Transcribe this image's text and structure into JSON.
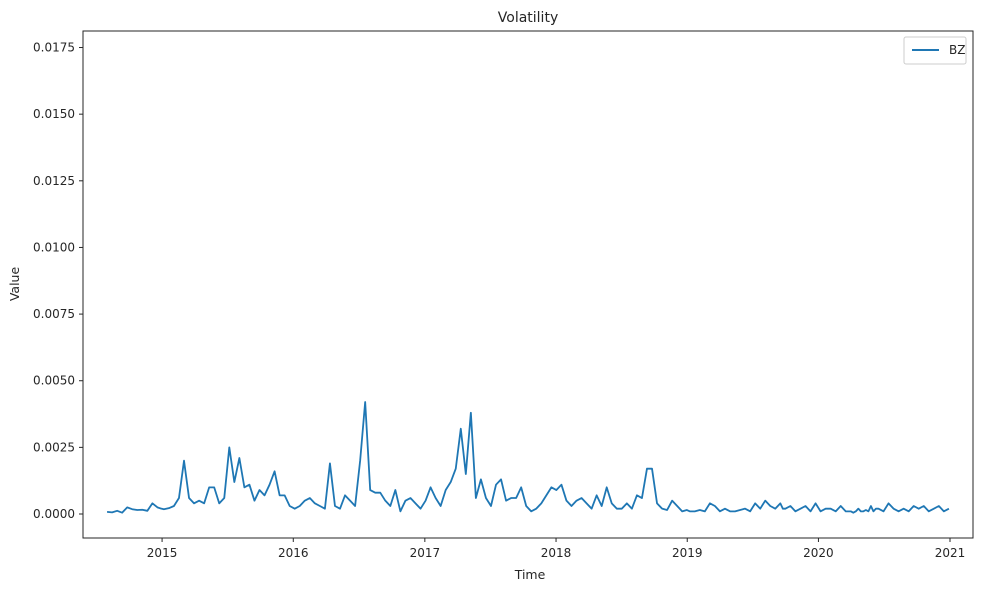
{
  "chart_data": {
    "type": "line",
    "title": "Volatility",
    "xlabel": "Time",
    "ylabel": "Value",
    "xlim": [
      "2014-05-26",
      "2021-03-06"
    ],
    "ylim": [
      -0.0009,
      0.01812
    ],
    "x_ticks": [
      "2015-01-01",
      "2016-01-01",
      "2017-01-01",
      "2018-01-01",
      "2019-01-01",
      "2020-01-01",
      "2021-01-01"
    ],
    "x_tick_labels": [
      "2015",
      "2016",
      "2017",
      "2018",
      "2019",
      "2020",
      "2021"
    ],
    "y_ticks": [
      0.0,
      0.0025,
      0.005,
      0.0075,
      0.01,
      0.0125,
      0.015,
      0.0175
    ],
    "y_tick_labels": [
      "0.0000",
      "0.0025",
      "0.0050",
      "0.0075",
      "0.0100",
      "0.0125",
      "0.0150",
      "0.0175"
    ],
    "legend": {
      "position": "top-right",
      "entries": [
        "BZ"
      ]
    },
    "grid": false,
    "series": [
      {
        "name": "BZ",
        "color": "#1f77b4",
        "x": [
          "2014-08-01",
          "2014-08-15",
          "2014-08-29",
          "2014-09-12",
          "2014-09-26",
          "2014-10-10",
          "2014-10-24",
          "2014-11-07",
          "2014-11-21",
          "2014-12-05",
          "2014-12-19",
          "2014-12-30",
          "2015-01-06",
          "2015-01-20",
          "2015-02-03",
          "2015-02-17",
          "2015-03-03",
          "2015-03-17",
          "2015-03-31",
          "2015-04-14",
          "2015-04-28",
          "2015-05-12",
          "2015-05-26",
          "2015-06-09",
          "2015-06-23",
          "2015-07-07",
          "2015-07-21",
          "2015-08-04",
          "2015-08-18",
          "2015-09-01",
          "2015-09-15",
          "2015-09-29",
          "2015-10-13",
          "2015-10-27",
          "2015-11-10",
          "2015-11-24",
          "2015-12-08",
          "2015-12-22",
          "2016-01-05",
          "2016-01-19",
          "2016-02-02",
          "2016-02-16",
          "2016-03-01",
          "2016-03-15",
          "2016-03-29",
          "2016-04-12",
          "2016-04-26",
          "2016-05-10",
          "2016-05-24",
          "2016-06-07",
          "2016-06-21",
          "2016-07-05",
          "2016-07-19",
          "2016-08-02",
          "2016-08-16",
          "2016-08-30",
          "2016-09-13",
          "2016-09-27",
          "2016-10-11",
          "2016-10-25",
          "2016-11-08",
          "2016-11-22",
          "2016-12-06",
          "2016-12-20",
          "2017-01-03",
          "2017-01-17",
          "2017-01-31",
          "2017-02-14",
          "2017-02-28",
          "2017-03-14",
          "2017-03-28",
          "2017-04-11",
          "2017-04-25",
          "2017-05-09",
          "2017-05-23",
          "2017-06-06",
          "2017-06-20",
          "2017-07-04",
          "2017-07-18",
          "2017-08-01",
          "2017-08-15",
          "2017-08-29",
          "2017-09-12",
          "2017-09-26",
          "2017-10-10",
          "2017-10-24",
          "2017-11-07",
          "2017-11-21",
          "2017-12-05",
          "2017-12-19",
          "2018-01-02",
          "2018-01-16",
          "2018-01-30",
          "2018-02-13",
          "2018-02-27",
          "2018-03-13",
          "2018-03-27",
          "2018-04-10",
          "2018-04-24",
          "2018-05-08",
          "2018-05-22",
          "2018-06-05",
          "2018-06-19",
          "2018-07-03",
          "2018-07-17",
          "2018-07-31",
          "2018-08-14",
          "2018-08-28",
          "2018-09-11",
          "2018-09-25",
          "2018-10-09",
          "2018-10-23",
          "2018-11-06",
          "2018-11-20",
          "2018-12-04",
          "2018-12-18",
          "2018-12-31",
          "2019-01-08",
          "2019-01-22",
          "2019-02-05",
          "2019-02-19",
          "2019-03-05",
          "2019-03-19",
          "2019-04-02",
          "2019-04-16",
          "2019-04-30",
          "2019-05-14",
          "2019-05-28",
          "2019-06-11",
          "2019-06-25",
          "2019-07-09",
          "2019-07-23",
          "2019-08-06",
          "2019-08-20",
          "2019-09-03",
          "2019-09-17",
          "2019-09-24",
          "2019-10-01",
          "2019-10-15",
          "2019-10-29",
          "2019-11-12",
          "2019-11-26",
          "2019-12-10",
          "2019-12-24",
          "2020-01-07",
          "2020-01-21",
          "2020-02-04",
          "2020-02-18",
          "2020-03-03",
          "2020-03-17",
          "2020-03-31",
          "2020-04-07",
          "2020-04-14",
          "2020-04-21",
          "2020-04-28",
          "2020-05-05",
          "2020-05-12",
          "2020-05-19",
          "2020-05-26",
          "2020-06-02",
          "2020-06-09",
          "2020-06-16",
          "2020-06-30",
          "2020-07-14",
          "2020-07-28",
          "2020-08-11",
          "2020-08-25",
          "2020-09-08",
          "2020-09-22",
          "2020-10-06",
          "2020-10-20",
          "2020-11-03",
          "2020-11-17",
          "2020-12-01",
          "2020-12-15",
          "2020-12-29"
        ],
        "y": [
          8e-05,
          6e-05,
          0.00012,
          5e-05,
          0.00025,
          0.00018,
          0.00015,
          0.00016,
          0.00012,
          0.0004,
          0.00025,
          0.0002,
          0.00018,
          0.00022,
          0.0003,
          0.0006,
          0.002,
          0.0006,
          0.0004,
          0.0005,
          0.0004,
          0.001,
          0.001,
          0.0004,
          0.0006,
          0.0025,
          0.0012,
          0.0021,
          0.001,
          0.0011,
          0.0005,
          0.0009,
          0.0007,
          0.0011,
          0.0016,
          0.0007,
          0.0007,
          0.0003,
          0.0002,
          0.0003,
          0.0005,
          0.0006,
          0.0004,
          0.0003,
          0.0002,
          0.0019,
          0.0003,
          0.0002,
          0.0007,
          0.0005,
          0.0003,
          0.002,
          0.0042,
          0.0009,
          0.0008,
          0.0008,
          0.0005,
          0.0003,
          0.0009,
          0.0001,
          0.0005,
          0.0006,
          0.0004,
          0.0002,
          0.0005,
          0.001,
          0.0006,
          0.0003,
          0.0009,
          0.0012,
          0.0017,
          0.0032,
          0.0015,
          0.0038,
          0.0006,
          0.0013,
          0.0006,
          0.0003,
          0.0011,
          0.0013,
          0.0005,
          0.0006,
          0.0006,
          0.001,
          0.0003,
          0.0001,
          0.0002,
          0.0004,
          0.0007,
          0.001,
          0.0009,
          0.0011,
          0.0005,
          0.0003,
          0.0005,
          0.0006,
          0.0004,
          0.0002,
          0.0007,
          0.0003,
          0.001,
          0.0004,
          0.0002,
          0.0002,
          0.0004,
          0.0002,
          0.0007,
          0.0006,
          0.0017,
          0.0017,
          0.0004,
          0.0002,
          0.00015,
          0.0005,
          0.0003,
          0.0001,
          0.00015,
          0.0001,
          0.0001,
          0.00015,
          0.0001,
          0.0004,
          0.0003,
          0.0001,
          0.0002,
          0.0001,
          0.0001,
          0.00015,
          0.0002,
          0.0001,
          0.0004,
          0.0002,
          0.0005,
          0.0003,
          0.0002,
          0.0004,
          0.0002,
          0.0002,
          0.0003,
          0.0001,
          0.0002,
          0.0003,
          0.0001,
          0.0004,
          0.0001,
          0.0002,
          0.0002,
          0.0001,
          0.0003,
          0.0001,
          0.0001,
          5e-05,
          0.0001,
          0.0002,
          0.0001,
          0.0001,
          0.00015,
          0.0001,
          0.0003,
          0.0001,
          0.0002,
          0.0002,
          0.0001,
          0.0004,
          0.0002,
          0.0001,
          0.0002,
          0.0001,
          0.0003,
          0.0002,
          0.0003,
          0.0001,
          0.0002,
          0.0003,
          0.0001,
          0.0002
        ],
        "note": ""
      }
    ]
  }
}
